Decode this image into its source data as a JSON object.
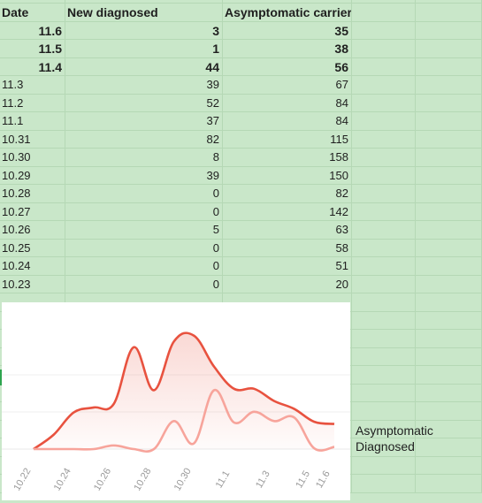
{
  "table": {
    "headers": [
      "Date",
      "New diagnosed",
      "Asymptomatic carrier"
    ],
    "rows": [
      {
        "date": "11.6",
        "new": "3",
        "asym": "35",
        "bold": true
      },
      {
        "date": "11.5",
        "new": "1",
        "asym": "38",
        "bold": true
      },
      {
        "date": "11.4",
        "new": "44",
        "asym": "56",
        "bold": true
      },
      {
        "date": "11.3",
        "new": "39",
        "asym": "67",
        "bold": false
      },
      {
        "date": "11.2",
        "new": "52",
        "asym": "84",
        "bold": false
      },
      {
        "date": "11.1",
        "new": "37",
        "asym": "84",
        "bold": false
      },
      {
        "date": "10.31",
        "new": "82",
        "asym": "115",
        "bold": false
      },
      {
        "date": "10.30",
        "new": "8",
        "asym": "158",
        "bold": false
      },
      {
        "date": "10.29",
        "new": "39",
        "asym": "150",
        "bold": false
      },
      {
        "date": "10.28",
        "new": "0",
        "asym": "82",
        "bold": false
      },
      {
        "date": "10.27",
        "new": "0",
        "asym": "142",
        "bold": false
      },
      {
        "date": "10.26",
        "new": "5",
        "asym": "63",
        "bold": false
      },
      {
        "date": "10.25",
        "new": "0",
        "asym": "58",
        "bold": false
      },
      {
        "date": "10.24",
        "new": "0",
        "asym": "51",
        "bold": false
      },
      {
        "date": "10.23",
        "new": "0",
        "asym": "20",
        "bold": false
      }
    ]
  },
  "legend": {
    "asymptomatic": "Asymptomatic",
    "diagnosed": "Diagnosed"
  },
  "colors": {
    "asymptomatic": "#e8523f",
    "diagnosed": "#f7a49b",
    "sheet": "#c9e7c9"
  },
  "chart_data": {
    "type": "line",
    "x_tick_labels": [
      "10.22",
      "10.24",
      "10.26",
      "10.28",
      "10.30",
      "11.1",
      "11.3",
      "11.5",
      "11.6"
    ],
    "x": [
      "10.22",
      "10.23",
      "10.24",
      "10.25",
      "10.26",
      "10.27",
      "10.28",
      "10.29",
      "10.30",
      "10.31",
      "11.1",
      "11.2",
      "11.3",
      "11.4",
      "11.5",
      "11.6"
    ],
    "series": [
      {
        "name": "Asymptomatic",
        "values": [
          0,
          20,
          51,
          58,
          63,
          142,
          82,
          150,
          158,
          115,
          84,
          84,
          67,
          56,
          38,
          35
        ]
      },
      {
        "name": "Diagnosed",
        "values": [
          0,
          0,
          0,
          0,
          5,
          0,
          0,
          39,
          8,
          82,
          37,
          52,
          39,
          44,
          1,
          3
        ]
      }
    ],
    "ylim": [
      0,
      170
    ]
  }
}
